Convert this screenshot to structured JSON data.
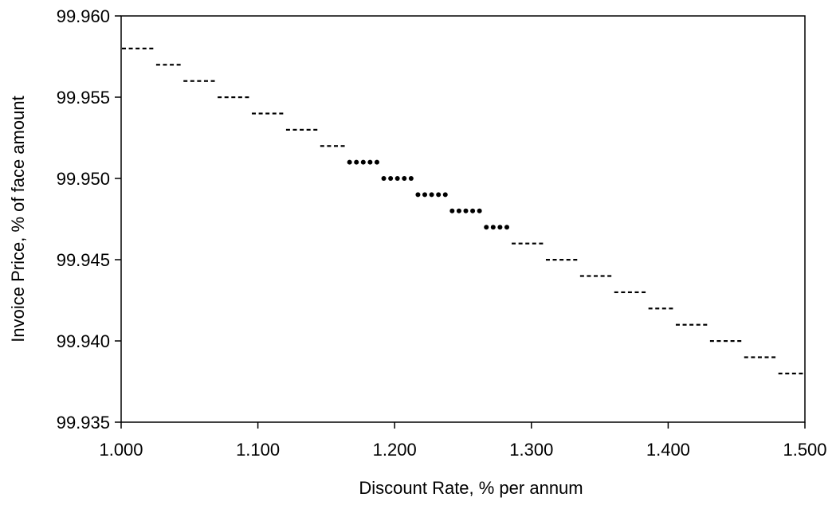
{
  "chart_data": {
    "type": "scatter",
    "title": "",
    "xlabel": "Discount Rate, % per annum",
    "ylabel": "Invoice Price, % of face amount",
    "xlim": [
      1.0,
      1.5
    ],
    "ylim": [
      99.935,
      99.96
    ],
    "xticks": [
      "1.000",
      "1.100",
      "1.200",
      "1.300",
      "1.400",
      "1.500"
    ],
    "yticks": [
      "99.935",
      "99.940",
      "99.945",
      "99.950",
      "99.955",
      "99.960"
    ],
    "grid": false,
    "legend": "none",
    "series": [
      {
        "marker": "dash",
        "color": "#000000",
        "points": [
          {
            "x": 1.0,
            "y": 99.958
          },
          {
            "x": 1.005,
            "y": 99.958
          },
          {
            "x": 1.01,
            "y": 99.958
          },
          {
            "x": 1.015,
            "y": 99.958
          },
          {
            "x": 1.02,
            "y": 99.958
          },
          {
            "x": 1.025,
            "y": 99.957
          },
          {
            "x": 1.03,
            "y": 99.957
          },
          {
            "x": 1.035,
            "y": 99.957
          },
          {
            "x": 1.04,
            "y": 99.957
          },
          {
            "x": 1.045,
            "y": 99.956
          },
          {
            "x": 1.05,
            "y": 99.956
          },
          {
            "x": 1.055,
            "y": 99.956
          },
          {
            "x": 1.06,
            "y": 99.956
          },
          {
            "x": 1.065,
            "y": 99.956
          },
          {
            "x": 1.07,
            "y": 99.955
          },
          {
            "x": 1.075,
            "y": 99.955
          },
          {
            "x": 1.08,
            "y": 99.955
          },
          {
            "x": 1.085,
            "y": 99.955
          },
          {
            "x": 1.09,
            "y": 99.955
          },
          {
            "x": 1.095,
            "y": 99.954
          },
          {
            "x": 1.1,
            "y": 99.954
          },
          {
            "x": 1.105,
            "y": 99.954
          },
          {
            "x": 1.11,
            "y": 99.954
          },
          {
            "x": 1.115,
            "y": 99.954
          },
          {
            "x": 1.12,
            "y": 99.953
          },
          {
            "x": 1.125,
            "y": 99.953
          },
          {
            "x": 1.13,
            "y": 99.953
          },
          {
            "x": 1.135,
            "y": 99.953
          },
          {
            "x": 1.14,
            "y": 99.953
          },
          {
            "x": 1.145,
            "y": 99.952
          },
          {
            "x": 1.15,
            "y": 99.952
          },
          {
            "x": 1.155,
            "y": 99.952
          },
          {
            "x": 1.16,
            "y": 99.952
          },
          {
            "x": 1.285,
            "y": 99.946
          },
          {
            "x": 1.29,
            "y": 99.946
          },
          {
            "x": 1.295,
            "y": 99.946
          },
          {
            "x": 1.3,
            "y": 99.946
          },
          {
            "x": 1.305,
            "y": 99.946
          },
          {
            "x": 1.31,
            "y": 99.945
          },
          {
            "x": 1.315,
            "y": 99.945
          },
          {
            "x": 1.32,
            "y": 99.945
          },
          {
            "x": 1.325,
            "y": 99.945
          },
          {
            "x": 1.33,
            "y": 99.945
          },
          {
            "x": 1.335,
            "y": 99.944
          },
          {
            "x": 1.34,
            "y": 99.944
          },
          {
            "x": 1.345,
            "y": 99.944
          },
          {
            "x": 1.35,
            "y": 99.944
          },
          {
            "x": 1.355,
            "y": 99.944
          },
          {
            "x": 1.36,
            "y": 99.943
          },
          {
            "x": 1.365,
            "y": 99.943
          },
          {
            "x": 1.37,
            "y": 99.943
          },
          {
            "x": 1.375,
            "y": 99.943
          },
          {
            "x": 1.38,
            "y": 99.943
          },
          {
            "x": 1.385,
            "y": 99.942
          },
          {
            "x": 1.39,
            "y": 99.942
          },
          {
            "x": 1.395,
            "y": 99.942
          },
          {
            "x": 1.4,
            "y": 99.942
          },
          {
            "x": 1.405,
            "y": 99.941
          },
          {
            "x": 1.41,
            "y": 99.941
          },
          {
            "x": 1.415,
            "y": 99.941
          },
          {
            "x": 1.42,
            "y": 99.941
          },
          {
            "x": 1.425,
            "y": 99.941
          },
          {
            "x": 1.43,
            "y": 99.94
          },
          {
            "x": 1.435,
            "y": 99.94
          },
          {
            "x": 1.44,
            "y": 99.94
          },
          {
            "x": 1.445,
            "y": 99.94
          },
          {
            "x": 1.45,
            "y": 99.94
          },
          {
            "x": 1.455,
            "y": 99.939
          },
          {
            "x": 1.46,
            "y": 99.939
          },
          {
            "x": 1.465,
            "y": 99.939
          },
          {
            "x": 1.47,
            "y": 99.939
          },
          {
            "x": 1.475,
            "y": 99.939
          },
          {
            "x": 1.48,
            "y": 99.938
          },
          {
            "x": 1.485,
            "y": 99.938
          },
          {
            "x": 1.49,
            "y": 99.938
          },
          {
            "x": 1.495,
            "y": 99.938
          }
        ]
      },
      {
        "marker": "dot",
        "color": "#000000",
        "points": [
          {
            "x": 1.165,
            "y": 99.951
          },
          {
            "x": 1.17,
            "y": 99.951
          },
          {
            "x": 1.175,
            "y": 99.951
          },
          {
            "x": 1.18,
            "y": 99.951
          },
          {
            "x": 1.185,
            "y": 99.951
          },
          {
            "x": 1.19,
            "y": 99.95
          },
          {
            "x": 1.195,
            "y": 99.95
          },
          {
            "x": 1.2,
            "y": 99.95
          },
          {
            "x": 1.205,
            "y": 99.95
          },
          {
            "x": 1.21,
            "y": 99.95
          },
          {
            "x": 1.215,
            "y": 99.949
          },
          {
            "x": 1.22,
            "y": 99.949
          },
          {
            "x": 1.225,
            "y": 99.949
          },
          {
            "x": 1.23,
            "y": 99.949
          },
          {
            "x": 1.235,
            "y": 99.949
          },
          {
            "x": 1.24,
            "y": 99.948
          },
          {
            "x": 1.245,
            "y": 99.948
          },
          {
            "x": 1.25,
            "y": 99.948
          },
          {
            "x": 1.255,
            "y": 99.948
          },
          {
            "x": 1.26,
            "y": 99.948
          },
          {
            "x": 1.265,
            "y": 99.947
          },
          {
            "x": 1.27,
            "y": 99.947
          },
          {
            "x": 1.275,
            "y": 99.947
          },
          {
            "x": 1.28,
            "y": 99.947
          }
        ]
      }
    ]
  }
}
